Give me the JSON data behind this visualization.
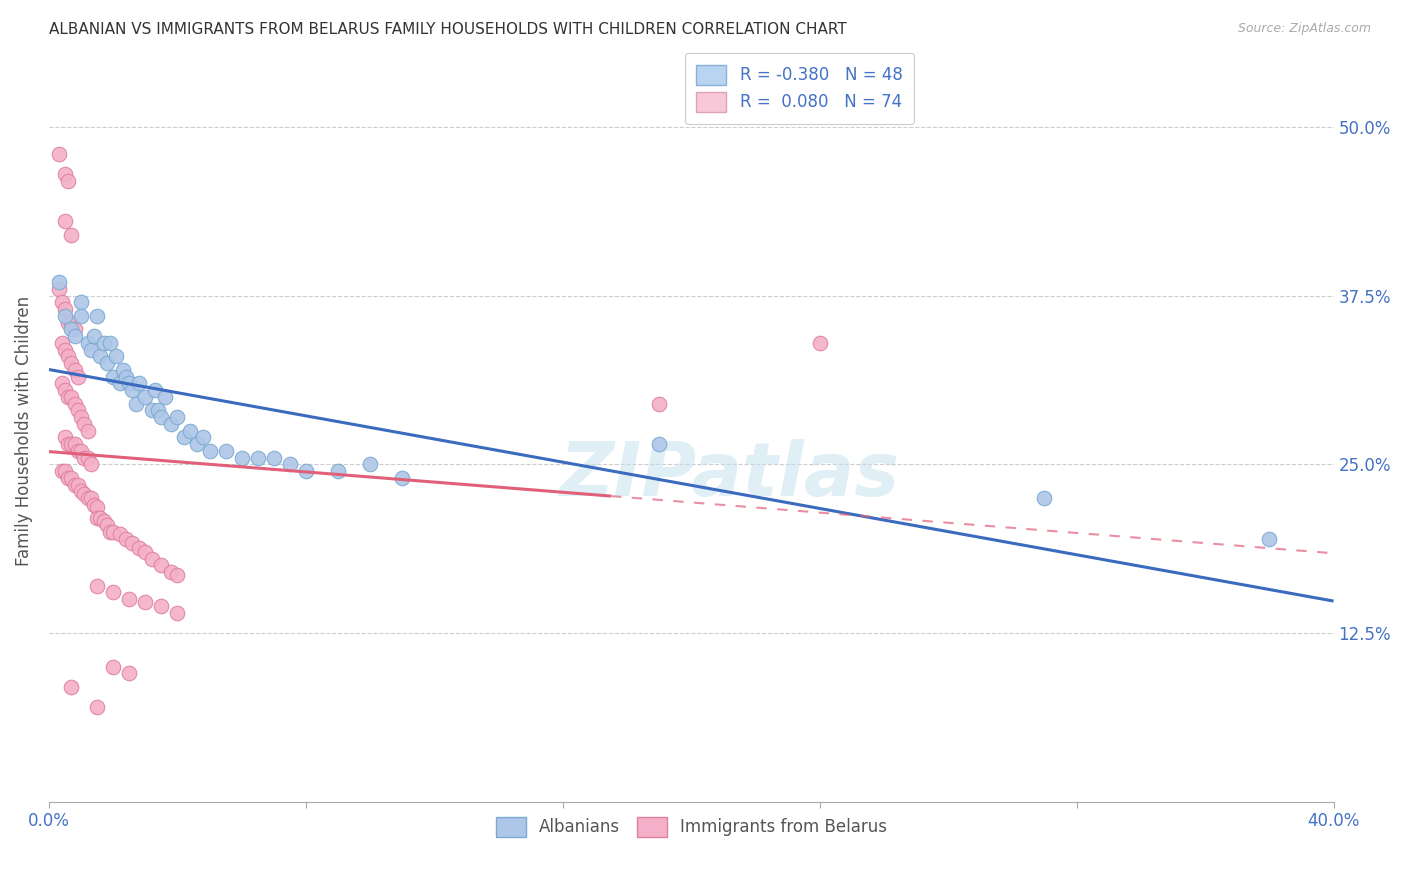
{
  "title": "ALBANIAN VS IMMIGRANTS FROM BELARUS FAMILY HOUSEHOLDS WITH CHILDREN CORRELATION CHART",
  "source": "Source: ZipAtlas.com",
  "ylabel": "Family Households with Children",
  "xlim": [
    0.0,
    0.4
  ],
  "ylim": [
    0.0,
    0.55
  ],
  "yticks": [
    0.125,
    0.25,
    0.375,
    0.5
  ],
  "ytick_labels": [
    "12.5%",
    "25.0%",
    "37.5%",
    "50.0%"
  ],
  "albanian_color": "#aec6e8",
  "albanian_edge": "#7aaad0",
  "belarus_color": "#f4b0c8",
  "belarus_edge": "#e080a0",
  "line_albanian_color": "#3a6bbf",
  "line_belarus_color": "#e0607a",
  "watermark": "ZIPatlas",
  "alb_R": -0.38,
  "alb_N": 48,
  "bel_R": 0.08,
  "bel_N": 74,
  "albanian_points": [
    [
      0.003,
      0.385
    ],
    [
      0.005,
      0.36
    ],
    [
      0.007,
      0.35
    ],
    [
      0.008,
      0.345
    ],
    [
      0.01,
      0.37
    ],
    [
      0.01,
      0.36
    ],
    [
      0.012,
      0.34
    ],
    [
      0.013,
      0.335
    ],
    [
      0.014,
      0.345
    ],
    [
      0.015,
      0.36
    ],
    [
      0.016,
      0.33
    ],
    [
      0.017,
      0.34
    ],
    [
      0.018,
      0.325
    ],
    [
      0.019,
      0.34
    ],
    [
      0.02,
      0.315
    ],
    [
      0.021,
      0.33
    ],
    [
      0.022,
      0.31
    ],
    [
      0.023,
      0.32
    ],
    [
      0.024,
      0.315
    ],
    [
      0.025,
      0.31
    ],
    [
      0.026,
      0.305
    ],
    [
      0.027,
      0.295
    ],
    [
      0.028,
      0.31
    ],
    [
      0.03,
      0.3
    ],
    [
      0.032,
      0.29
    ],
    [
      0.033,
      0.305
    ],
    [
      0.034,
      0.29
    ],
    [
      0.035,
      0.285
    ],
    [
      0.036,
      0.3
    ],
    [
      0.038,
      0.28
    ],
    [
      0.04,
      0.285
    ],
    [
      0.042,
      0.27
    ],
    [
      0.044,
      0.275
    ],
    [
      0.046,
      0.265
    ],
    [
      0.048,
      0.27
    ],
    [
      0.05,
      0.26
    ],
    [
      0.055,
      0.26
    ],
    [
      0.06,
      0.255
    ],
    [
      0.065,
      0.255
    ],
    [
      0.07,
      0.255
    ],
    [
      0.075,
      0.25
    ],
    [
      0.08,
      0.245
    ],
    [
      0.09,
      0.245
    ],
    [
      0.1,
      0.25
    ],
    [
      0.11,
      0.24
    ],
    [
      0.19,
      0.265
    ],
    [
      0.31,
      0.225
    ],
    [
      0.38,
      0.195
    ]
  ],
  "belarus_points": [
    [
      0.003,
      0.48
    ],
    [
      0.005,
      0.465
    ],
    [
      0.006,
      0.46
    ],
    [
      0.005,
      0.43
    ],
    [
      0.007,
      0.42
    ],
    [
      0.003,
      0.38
    ],
    [
      0.004,
      0.37
    ],
    [
      0.005,
      0.365
    ],
    [
      0.006,
      0.355
    ],
    [
      0.007,
      0.355
    ],
    [
      0.008,
      0.35
    ],
    [
      0.004,
      0.34
    ],
    [
      0.005,
      0.335
    ],
    [
      0.006,
      0.33
    ],
    [
      0.007,
      0.325
    ],
    [
      0.008,
      0.32
    ],
    [
      0.009,
      0.315
    ],
    [
      0.004,
      0.31
    ],
    [
      0.005,
      0.305
    ],
    [
      0.006,
      0.3
    ],
    [
      0.007,
      0.3
    ],
    [
      0.008,
      0.295
    ],
    [
      0.009,
      0.29
    ],
    [
      0.01,
      0.285
    ],
    [
      0.011,
      0.28
    ],
    [
      0.012,
      0.275
    ],
    [
      0.005,
      0.27
    ],
    [
      0.006,
      0.265
    ],
    [
      0.007,
      0.265
    ],
    [
      0.008,
      0.265
    ],
    [
      0.009,
      0.26
    ],
    [
      0.01,
      0.26
    ],
    [
      0.011,
      0.255
    ],
    [
      0.012,
      0.255
    ],
    [
      0.013,
      0.25
    ],
    [
      0.004,
      0.245
    ],
    [
      0.005,
      0.245
    ],
    [
      0.006,
      0.24
    ],
    [
      0.007,
      0.24
    ],
    [
      0.008,
      0.235
    ],
    [
      0.009,
      0.235
    ],
    [
      0.01,
      0.23
    ],
    [
      0.011,
      0.228
    ],
    [
      0.012,
      0.225
    ],
    [
      0.013,
      0.225
    ],
    [
      0.014,
      0.22
    ],
    [
      0.015,
      0.218
    ],
    [
      0.015,
      0.21
    ],
    [
      0.016,
      0.21
    ],
    [
      0.017,
      0.208
    ],
    [
      0.018,
      0.205
    ],
    [
      0.019,
      0.2
    ],
    [
      0.02,
      0.2
    ],
    [
      0.022,
      0.198
    ],
    [
      0.024,
      0.195
    ],
    [
      0.026,
      0.192
    ],
    [
      0.028,
      0.188
    ],
    [
      0.03,
      0.185
    ],
    [
      0.032,
      0.18
    ],
    [
      0.035,
      0.175
    ],
    [
      0.038,
      0.17
    ],
    [
      0.04,
      0.168
    ],
    [
      0.015,
      0.16
    ],
    [
      0.02,
      0.155
    ],
    [
      0.025,
      0.15
    ],
    [
      0.03,
      0.148
    ],
    [
      0.035,
      0.145
    ],
    [
      0.04,
      0.14
    ],
    [
      0.02,
      0.1
    ],
    [
      0.025,
      0.095
    ],
    [
      0.007,
      0.085
    ],
    [
      0.015,
      0.07
    ],
    [
      0.19,
      0.295
    ],
    [
      0.24,
      0.34
    ]
  ]
}
